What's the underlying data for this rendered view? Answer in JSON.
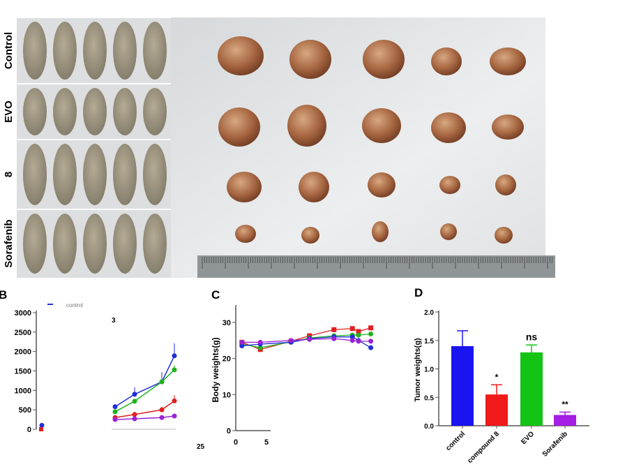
{
  "panel_a": {
    "row_labels": [
      "Control",
      "EVO",
      "8",
      "Sorafenib"
    ],
    "tumor_counts_per_row": [
      5,
      5,
      5,
      5
    ],
    "mice_per_row": 5
  },
  "chart_data": [
    {
      "panel": "B",
      "panel_label": "B",
      "type": "line",
      "ylim": [
        0,
        3000
      ],
      "yticks": [
        "0",
        "500",
        "1000",
        "1500",
        "2000",
        "2500",
        "3000"
      ],
      "stray_labels": [
        "3",
        "25"
      ],
      "legend_text": "control",
      "series": [
        {
          "color": "#1f2fd8",
          "marker": "circle",
          "values": [
            580,
            900,
            1220,
            1890
          ],
          "errors": [
            60,
            180,
            250,
            320
          ]
        },
        {
          "color": "#1db31d",
          "marker": "triangle",
          "values": [
            450,
            720,
            1220,
            1530
          ],
          "errors": [
            40,
            60,
            80,
            120
          ]
        },
        {
          "color": "#e02020",
          "marker": "square",
          "values": [
            300,
            380,
            500,
            730
          ],
          "errors": [
            40,
            70,
            80,
            150
          ]
        },
        {
          "color": "#9b22d6",
          "marker": "triangle-down",
          "values": [
            250,
            270,
            300,
            340
          ],
          "errors": [
            20,
            20,
            20,
            30
          ]
        }
      ],
      "first_point": {
        "blue": 100,
        "red": 0
      }
    },
    {
      "panel": "C",
      "panel_label": "C",
      "type": "line",
      "ylabel": "Body weights(g)",
      "ylim": [
        0,
        35
      ],
      "yticks": [
        "0",
        "10",
        "20",
        "30"
      ],
      "xticks": [
        "0",
        "5"
      ],
      "x": [
        1,
        4,
        9,
        12,
        16,
        19,
        20,
        22
      ],
      "series": [
        {
          "color": "#e02020",
          "marker": "square",
          "values": [
            24.5,
            22.5,
            24.8,
            26.3,
            28.0,
            28.3,
            27.5,
            28.5
          ]
        },
        {
          "color": "#1db31d",
          "marker": "triangle",
          "values": [
            24.0,
            23.0,
            24.6,
            25.7,
            26.3,
            26.5,
            26.5,
            26.8
          ]
        },
        {
          "color": "#1f2fd8",
          "marker": "circle",
          "values": [
            23.5,
            24.0,
            24.5,
            25.5,
            26.0,
            26.0,
            25.0,
            23.0
          ]
        },
        {
          "color": "#9b22d6",
          "marker": "triangle-down",
          "values": [
            24.5,
            24.5,
            25.0,
            25.3,
            25.5,
            25.0,
            24.8,
            24.8
          ]
        }
      ]
    },
    {
      "panel": "D",
      "panel_label": "D",
      "type": "bar",
      "ylabel": "Tumor weights(g)",
      "ylim": [
        0,
        2.0
      ],
      "yticks": [
        "0.0",
        "0.5",
        "1.0",
        "1.5",
        "2.0"
      ],
      "categories": [
        "control",
        "compound 8",
        "EVO",
        "Sorafenib"
      ],
      "values": [
        1.4,
        0.55,
        1.29,
        0.19
      ],
      "errors": [
        0.27,
        0.17,
        0.13,
        0.05
      ],
      "colors": [
        "#1a14f0",
        "#f01a1a",
        "#14c414",
        "#a51ee6"
      ],
      "annotations": [
        "",
        "*",
        "ns",
        "**"
      ]
    }
  ]
}
